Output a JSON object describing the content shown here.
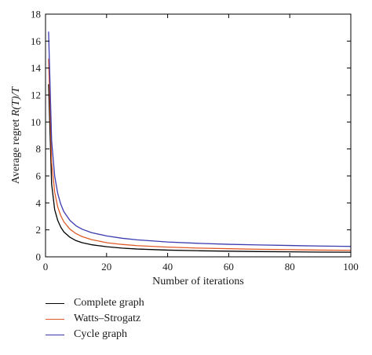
{
  "chart_data": {
    "type": "line",
    "xlabel": "Number of iterations",
    "ylabel_prefix": "Average regret ",
    "ylabel_italic": "R(T)/T",
    "xlim": [
      0,
      100
    ],
    "ylim": [
      0,
      18
    ],
    "xticks": [
      0,
      20,
      40,
      60,
      80,
      100
    ],
    "yticks": [
      0,
      2,
      4,
      6,
      8,
      10,
      12,
      14,
      16,
      18
    ],
    "grid": false,
    "legend_position": "bottom-left, below plot",
    "x": [
      1,
      2,
      3,
      4,
      5,
      6,
      8,
      10,
      12,
      15,
      20,
      25,
      30,
      40,
      50,
      60,
      70,
      80,
      90,
      100
    ],
    "series": [
      {
        "name": "Complete graph",
        "color": "#000000",
        "values": [
          12.8,
          5.4,
          3.5,
          2.7,
          2.2,
          1.85,
          1.45,
          1.2,
          1.05,
          0.9,
          0.75,
          0.65,
          0.58,
          0.5,
          0.45,
          0.42,
          0.39,
          0.37,
          0.35,
          0.34
        ]
      },
      {
        "name": "Watts–Strogatz",
        "color": "#e05a28",
        "values": [
          14.7,
          7.0,
          4.8,
          3.7,
          3.05,
          2.6,
          2.05,
          1.72,
          1.5,
          1.28,
          1.05,
          0.92,
          0.83,
          0.72,
          0.65,
          0.6,
          0.56,
          0.53,
          0.5,
          0.48
        ]
      },
      {
        "name": "Cycle graph",
        "color": "#3b3bb0",
        "values": [
          16.7,
          8.6,
          6.0,
          4.7,
          3.9,
          3.35,
          2.7,
          2.3,
          2.05,
          1.8,
          1.55,
          1.38,
          1.26,
          1.1,
          1.0,
          0.93,
          0.88,
          0.84,
          0.8,
          0.77
        ]
      }
    ]
  }
}
